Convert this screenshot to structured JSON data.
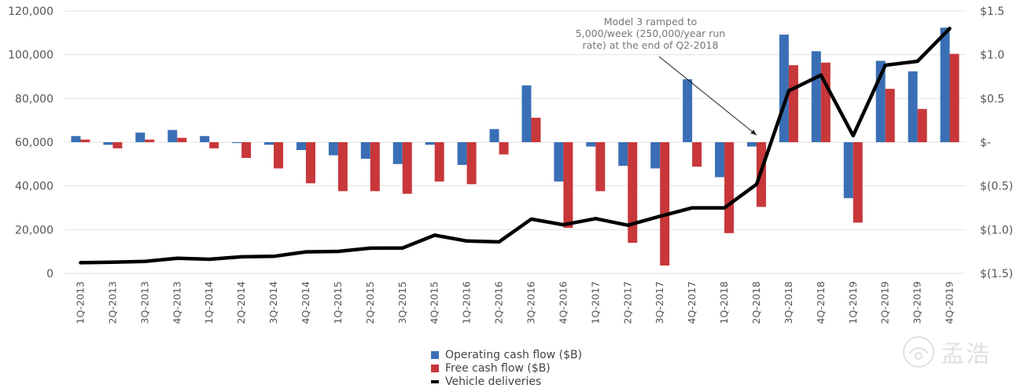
{
  "chart_data": {
    "type": "bar+line",
    "categories": [
      "1Q-2013",
      "2Q-2013",
      "3Q-2013",
      "4Q-2013",
      "1Q-2014",
      "2Q-2014",
      "3Q-2014",
      "4Q-2014",
      "1Q-2015",
      "2Q-2015",
      "3Q-2015",
      "4Q-2015",
      "1Q-2016",
      "2Q-2016",
      "3Q-2016",
      "4Q-2016",
      "1Q-2017",
      "2Q-2017",
      "3Q-2017",
      "4Q-2017",
      "1Q-2018",
      "2Q-2018",
      "3Q-2018",
      "4Q-2018",
      "1Q-2019",
      "2Q-2019",
      "3Q-2019",
      "4Q-2019"
    ],
    "series": [
      {
        "name": "Operating cash flow ($B)",
        "axis": "right",
        "color": "#3a6fb5",
        "values": [
          0.07,
          -0.03,
          0.11,
          0.14,
          0.07,
          -0.01,
          -0.03,
          -0.09,
          -0.15,
          -0.19,
          -0.25,
          -0.03,
          -0.26,
          0.15,
          0.65,
          -0.45,
          -0.05,
          -0.27,
          -0.3,
          0.72,
          -0.4,
          -0.05,
          1.23,
          1.04,
          -0.64,
          0.93,
          0.81,
          1.31
        ]
      },
      {
        "name": "Free cash flow ($B)",
        "axis": "right",
        "color": "#c8373a",
        "values": [
          0.03,
          -0.07,
          0.03,
          0.05,
          -0.07,
          -0.18,
          -0.3,
          -0.47,
          -0.56,
          -0.56,
          -0.59,
          -0.45,
          -0.48,
          -0.14,
          0.28,
          -0.98,
          -0.56,
          -1.15,
          -1.41,
          -0.28,
          -1.04,
          -0.74,
          0.88,
          0.91,
          -0.92,
          0.61,
          0.38,
          1.01
        ]
      },
      {
        "name": "Vehicle deliveries",
        "axis": "left",
        "color": "#000000",
        "values": [
          4900,
          5150,
          5500,
          6900,
          6457,
          7579,
          7785,
          9834,
          10045,
          11532,
          11603,
          17478,
          14820,
          14402,
          24821,
          22252,
          25051,
          22026,
          26137,
          29967,
          29980,
          40740,
          83500,
          90700,
          63000,
          95200,
          97000,
          112000
        ]
      }
    ],
    "left_axis": {
      "ylim": [
        0,
        120000
      ],
      "ticks": [
        "0",
        "20,000",
        "40,000",
        "60,000",
        "80,000",
        "100,000",
        "120,000"
      ]
    },
    "right_axis": {
      "ylim": [
        -1.5,
        1.5
      ],
      "ticks": [
        "$(1.5)",
        "$(1.0)",
        "$(0.5)",
        "$-",
        "$0.5",
        "$1.0",
        "$1.5"
      ]
    },
    "annotation": {
      "lines": [
        "Model 3 ramped to",
        "5,000/week (250,000/year run",
        "rate) at the end of Q2-2018"
      ],
      "target_category": "2Q-2018"
    },
    "legend": [
      "Operating cash flow ($B)",
      "Free cash flow ($B)",
      "Vehicle deliveries"
    ],
    "legend_position": "bottom-center",
    "grid": "horizontal"
  },
  "watermark": {
    "text": "孟浩"
  }
}
